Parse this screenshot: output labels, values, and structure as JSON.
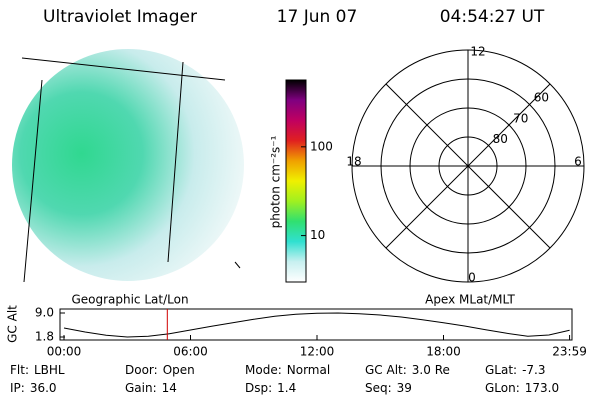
{
  "header": {
    "title": "Ultraviolet Imager",
    "date": "17 Jun 07",
    "time": "04:54:27 UT"
  },
  "colorbar": {
    "label": "photon cm⁻²s⁻¹",
    "scale": "log",
    "lim": [
      3,
      566
    ],
    "ticks": [
      10,
      100
    ],
    "colors": [
      "#ffffff",
      "#c8f0f0",
      "#30e0d0",
      "#30e070",
      "#a0f020",
      "#f0f000",
      "#f0a000",
      "#e02020",
      "#c00060",
      "#800080",
      "#000000"
    ]
  },
  "polar": {
    "lat_min": 50,
    "lat_rings": [
      60,
      70,
      80
    ],
    "mlt_labels": {
      "top": "12",
      "right": "6",
      "bottom": "0",
      "left": "18"
    }
  },
  "altitude": {
    "ylabel": "GC Alt",
    "left_title": "Geographic Lat/Lon",
    "right_title": "Apex MLat/MLT",
    "xlim": [
      0,
      24
    ],
    "ylim": [
      1.8,
      9.0
    ],
    "yticks": [
      {
        "value": 9.0,
        "label": "9.0"
      },
      {
        "value": 1.8,
        "label": "1.8"
      }
    ],
    "xticks": [
      {
        "value": 0,
        "label": "00:00"
      },
      {
        "value": 6,
        "label": "06:00"
      },
      {
        "value": 12,
        "label": "12:00"
      },
      {
        "value": 18,
        "label": "18:00"
      },
      {
        "value": 23.98,
        "label": "23:59"
      }
    ],
    "x": [
      0,
      1,
      2,
      3,
      4,
      5,
      6,
      7,
      8,
      9,
      10,
      11,
      12,
      13,
      14,
      15,
      16,
      17,
      18,
      19,
      20,
      21,
      22,
      23,
      23.98
    ],
    "values": [
      4.5,
      3.3,
      2.3,
      1.8,
      2.0,
      2.8,
      3.9,
      5.0,
      6.1,
      7.1,
      8.0,
      8.6,
      8.95,
      9.0,
      8.8,
      8.4,
      7.8,
      7.0,
      6.1,
      5.1,
      4.0,
      2.9,
      2.0,
      2.4,
      3.8
    ],
    "marker_time": 4.9,
    "marker_color": "#d00000"
  },
  "info": [
    [
      {
        "label": "Flt:",
        "value": "LBHL"
      },
      {
        "label": "Door:",
        "value": "Open"
      },
      {
        "label": "Mode:",
        "value": "Normal"
      },
      {
        "label": "GC Alt:",
        "value": "3.0 Re"
      },
      {
        "label": "GLat:",
        "value": "-7.3"
      }
    ],
    [
      {
        "label": "IP:",
        "value": "36.0"
      },
      {
        "label": "Gain:",
        "value": "14"
      },
      {
        "label": "Dsp:",
        "value": "1.4"
      },
      {
        "label": "Seq:",
        "value": "39"
      },
      {
        "label": "GLon:",
        "value": "173.0"
      }
    ]
  ]
}
